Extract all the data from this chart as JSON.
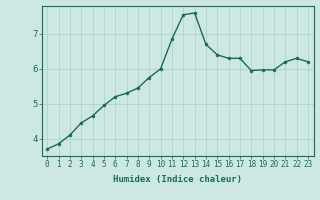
{
  "x": [
    0,
    1,
    2,
    3,
    4,
    5,
    6,
    7,
    8,
    9,
    10,
    11,
    12,
    13,
    14,
    15,
    16,
    17,
    18,
    19,
    20,
    21,
    22,
    23
  ],
  "y": [
    3.7,
    3.85,
    4.1,
    4.45,
    4.65,
    4.95,
    5.2,
    5.3,
    5.45,
    5.75,
    6.0,
    6.85,
    7.55,
    7.6,
    6.7,
    6.4,
    6.3,
    6.3,
    5.95,
    5.97,
    5.97,
    6.2,
    6.3,
    6.2
  ],
  "xlabel": "Humidex (Indice chaleur)",
  "background_color": "#cde8e4",
  "line_color": "#1a6b5a",
  "grid_color": "#b0d8d0",
  "ylim": [
    3.5,
    7.8
  ],
  "xlim": [
    -0.5,
    23.5
  ],
  "yticks": [
    4,
    5,
    6,
    7
  ],
  "xticks": [
    0,
    1,
    2,
    3,
    4,
    5,
    6,
    7,
    8,
    9,
    10,
    11,
    12,
    13,
    14,
    15,
    16,
    17,
    18,
    19,
    20,
    21,
    22,
    23
  ],
  "marker_size": 2,
  "line_width": 1.0,
  "tick_fontsize": 5.5,
  "xlabel_fontsize": 6.5,
  "ytick_fontsize": 6.5
}
